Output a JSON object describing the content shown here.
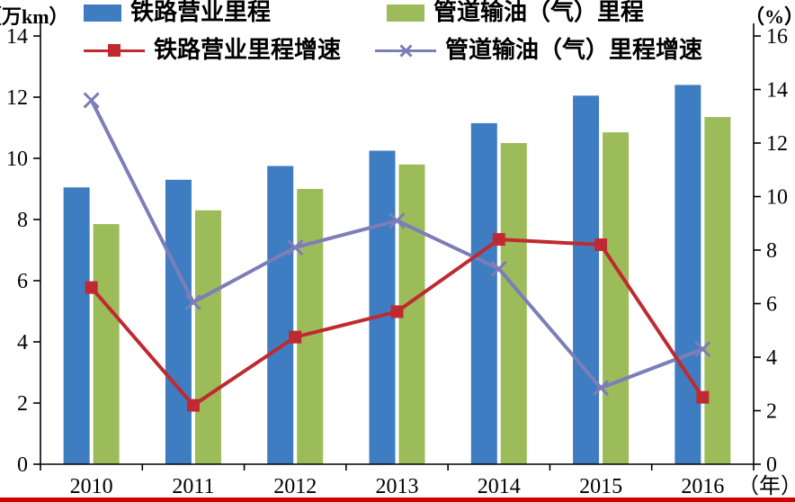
{
  "legend": [
    {
      "label": "铁路营业里程",
      "type": "bar",
      "color": "#3e7dc1"
    },
    {
      "label": "管道输油（气）里程",
      "type": "bar",
      "color": "#9cbb59"
    },
    {
      "label": "铁路营业里程增速",
      "type": "line-square",
      "color": "#bf2a30"
    },
    {
      "label": "管道输油（气）里程增速",
      "type": "line-x",
      "color": "#7d7db8"
    }
  ],
  "decor": {
    "bottom_rule_color": "#d40000"
  },
  "chart_data": {
    "type": "bar+line",
    "title": "",
    "categories": [
      "2010",
      "2011",
      "2012",
      "2013",
      "2014",
      "2015",
      "2016"
    ],
    "series": [
      {
        "name": "铁路营业里程",
        "type": "bar",
        "axis": "left",
        "color": "#3e7dc1",
        "values": [
          9.05,
          9.3,
          9.75,
          10.25,
          11.15,
          12.05,
          12.4
        ]
      },
      {
        "name": "管道输油（气）里程",
        "type": "bar",
        "axis": "left",
        "color": "#9cbb59",
        "values": [
          7.85,
          8.3,
          9.0,
          9.8,
          10.5,
          10.85,
          11.35
        ]
      },
      {
        "name": "铁路营业里程增速",
        "type": "line",
        "marker": "square",
        "axis": "right",
        "color": "#bf2a30",
        "values": [
          6.6,
          2.2,
          4.75,
          5.7,
          8.4,
          8.2,
          2.5
        ]
      },
      {
        "name": "管道输油（气）里程增速",
        "type": "line",
        "marker": "x",
        "axis": "right",
        "color": "#7d7db8",
        "values": [
          13.6,
          6.05,
          8.1,
          9.1,
          7.3,
          2.85,
          4.3
        ]
      }
    ],
    "left_axis": {
      "label": "（万km）",
      "min": 0,
      "max": 14,
      "ticks": [
        0,
        2,
        4,
        6,
        8,
        10,
        12,
        14
      ]
    },
    "right_axis": {
      "label": "（%）",
      "min": 0,
      "max": 16,
      "ticks": [
        0,
        2,
        4,
        6,
        8,
        10,
        12,
        14,
        16
      ]
    },
    "x_axis": {
      "label": "（年）"
    },
    "grid": false,
    "legend_position": "top"
  }
}
